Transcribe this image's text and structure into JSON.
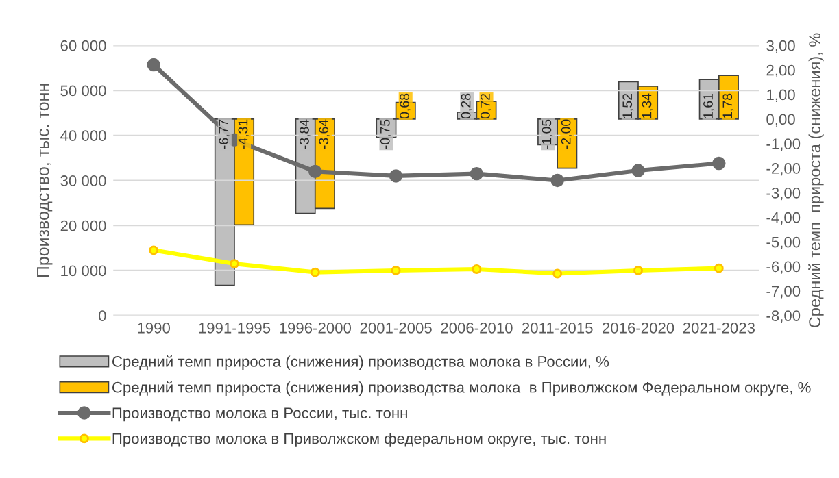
{
  "chart_data": {
    "type": "bar",
    "ylabel": "Производство, тыс. тонн",
    "y2label": "Средний темп  прироста (снижения), %",
    "categories": [
      "1990",
      "1991-1995",
      "1996-2000",
      "2001-2005",
      "2006-2010",
      "2011-2015",
      "2016-2020",
      "2021-2023"
    ],
    "series": [
      {
        "name": "Средний темп прироста (снижения) производства молока в России, %",
        "axis": "y2",
        "color": "#bfbfbf",
        "values": [
          null,
          -6.77,
          -3.84,
          -0.75,
          0.28,
          -1.05,
          1.52,
          1.61
        ],
        "value_labels": [
          null,
          "-6,77",
          "-3,84",
          "-0,75",
          "0,28",
          "-1,05",
          "1,52",
          "1,61"
        ]
      },
      {
        "name": "Средний темп прироста (снижения) производства молока  в Приволжском Федеральном округе, %",
        "axis": "y2",
        "color": "#ffc000",
        "values": [
          null,
          -4.31,
          -3.64,
          0.68,
          0.72,
          -2.0,
          1.34,
          1.78
        ],
        "value_labels": [
          null,
          "-4,31",
          "-3,64",
          "0,68",
          "0,72",
          "-2,00",
          "1,34",
          "1,78"
        ]
      },
      {
        "name": "Производство молока в России, тыс. тонн",
        "type": "line",
        "color": "#6b6b6b",
        "values": [
          55700,
          39000,
          32000,
          31000,
          31500,
          30000,
          32200,
          33800
        ]
      },
      {
        "name": "Производство молока в Приволжском федеральном округе, тыс. тонн",
        "type": "line",
        "color": "#ffff00",
        "values": [
          14500,
          11500,
          9600,
          10000,
          10300,
          9300,
          10000,
          10500
        ]
      }
    ],
    "ylim": [
      0,
      60000
    ],
    "yticks": [
      0,
      {
        "value": 10000,
        "label": "10 000"
      },
      {
        "value": 20000,
        "label": "20 000"
      },
      {
        "value": 30000,
        "label": "30 000"
      },
      {
        "value": 40000,
        "label": "40 000"
      },
      {
        "value": 50000,
        "label": "50 000"
      },
      {
        "value": 60000,
        "label": "60 000"
      }
    ],
    "y2lim": [
      -8,
      3
    ],
    "y2ticks": [
      {
        "value": -8,
        "label": "-8,00"
      },
      {
        "value": -7,
        "label": "-7,00"
      },
      {
        "value": -6,
        "label": "-6,00"
      },
      {
        "value": -5,
        "label": "-5,00"
      },
      {
        "value": -4,
        "label": "-4,00"
      },
      {
        "value": -3,
        "label": "-3,00"
      },
      {
        "value": -2,
        "label": "-2,00"
      },
      {
        "value": -1,
        "label": "-1,00"
      },
      {
        "value": 0,
        "label": "0,00"
      },
      {
        "value": 1,
        "label": "1,00"
      },
      {
        "value": 2,
        "label": "2,00"
      },
      {
        "value": 3,
        "label": "3,00"
      }
    ],
    "grid": "y",
    "legend": "bottom",
    "marker": "circle"
  }
}
